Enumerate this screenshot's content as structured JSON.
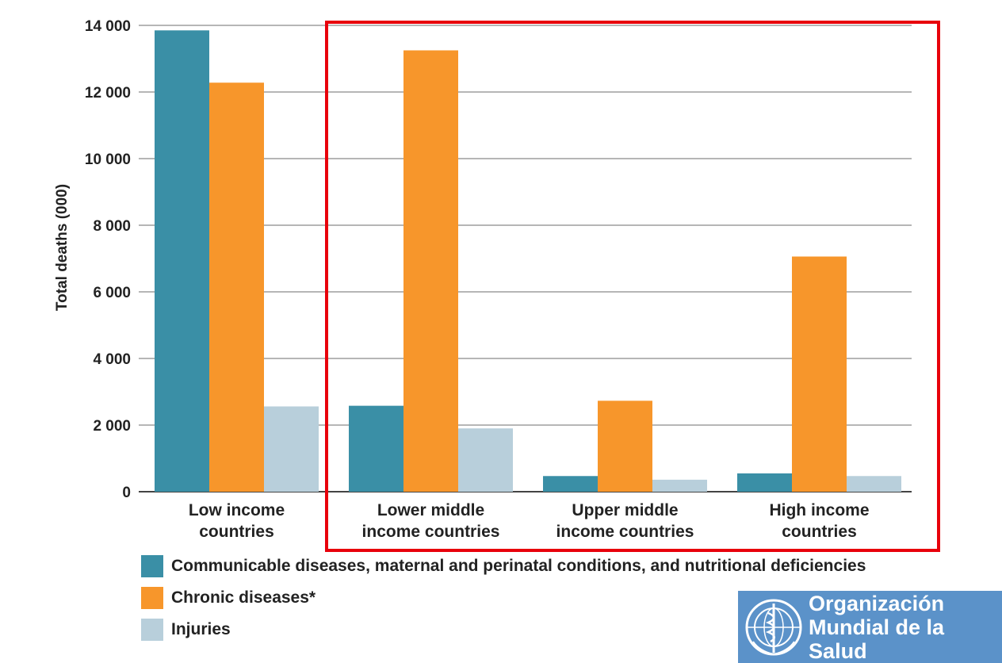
{
  "chart_data": {
    "type": "bar",
    "ylabel": "Total deaths (000)",
    "ylim": [
      0,
      14000
    ],
    "yticks": [
      "0",
      "2 000",
      "4 000",
      "6 000",
      "8 000",
      "10 000",
      "12 000",
      "14 000"
    ],
    "ytick_values": [
      0,
      2000,
      4000,
      6000,
      8000,
      10000,
      12000,
      14000
    ],
    "grid": true,
    "categories": [
      [
        "Low income",
        "countries"
      ],
      [
        "Lower middle",
        "income countries"
      ],
      [
        "Upper middle",
        "income countries"
      ],
      [
        "High income",
        "countries"
      ]
    ],
    "series": [
      {
        "name": "Communicable diseases, maternal and perinatal conditions, and nutritional deficiencies",
        "color": "#3a8fa6",
        "values": [
          13850,
          2580,
          470,
          550
        ]
      },
      {
        "name": "Chronic diseases*",
        "color": "#f7962b",
        "values": [
          12280,
          13250,
          2730,
          7060
        ]
      },
      {
        "name": "Injuries",
        "color": "#b8cfdb",
        "values": [
          2560,
          1900,
          360,
          470
        ]
      }
    ],
    "highlight_box_color": "#e8000b"
  },
  "logo": {
    "line1": "Organización",
    "line2": "Mundial de la Salud",
    "icon": "who-emblem-icon",
    "bg_color": "#5b92c9"
  }
}
